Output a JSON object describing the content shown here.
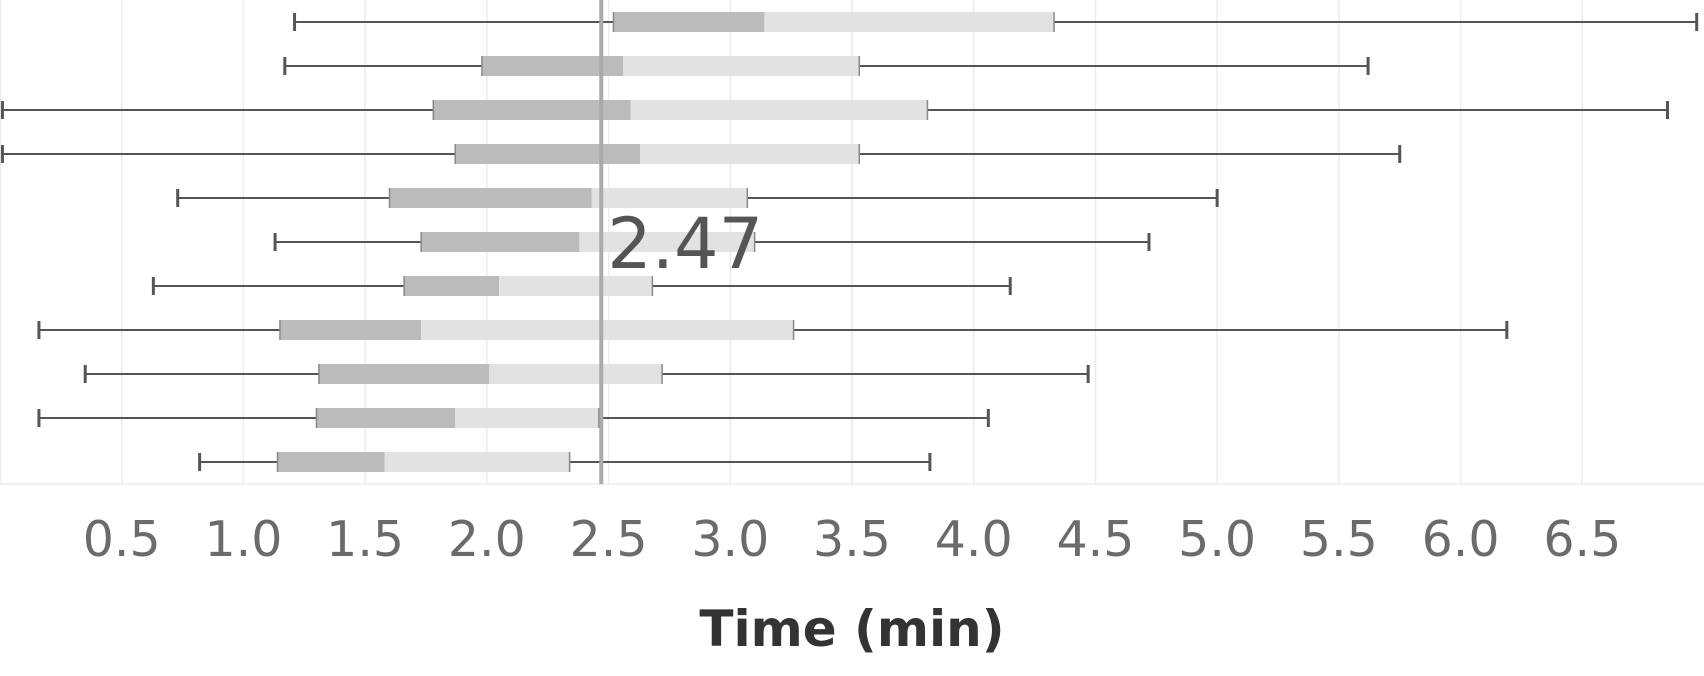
{
  "chart_data": {
    "type": "boxplot",
    "orientation": "horizontal",
    "xlabel": "Time (min)",
    "xlim": [
      0.0,
      7.0
    ],
    "ticks": [
      0.5,
      1.0,
      1.5,
      2.0,
      2.5,
      3.0,
      3.5,
      4.0,
      4.5,
      5.0,
      5.5,
      6.0,
      6.5
    ],
    "tick_labels": [
      "0.5",
      "1.0",
      "1.5",
      "2.0",
      "2.5",
      "3.0",
      "3.5",
      "4.0",
      "4.5",
      "5.0",
      "5.5",
      "6.0",
      "6.5"
    ],
    "grid": true,
    "reference_line": {
      "value": 2.47,
      "label": "2.47"
    },
    "colors": {
      "lower_box": "#bbbbbb",
      "upper_box": "#e2e2e2",
      "whisker": "#555555",
      "gridline": "#ececec",
      "reference": "#aaaaaa"
    },
    "rows": [
      {
        "min": 1.21,
        "q1": 2.52,
        "median": 3.14,
        "q3": 4.33,
        "max": 6.97
      },
      {
        "min": 1.17,
        "q1": 1.98,
        "median": 2.56,
        "q3": 3.53,
        "max": 5.62
      },
      {
        "min": 0.01,
        "q1": 1.78,
        "median": 2.59,
        "q3": 3.81,
        "max": 6.85
      },
      {
        "min": 0.01,
        "q1": 1.87,
        "median": 2.63,
        "q3": 3.53,
        "max": 5.75
      },
      {
        "min": 0.73,
        "q1": 1.6,
        "median": 2.43,
        "q3": 3.07,
        "max": 5.0
      },
      {
        "min": 1.13,
        "q1": 1.73,
        "median": 2.38,
        "q3": 3.1,
        "max": 4.72
      },
      {
        "min": 0.63,
        "q1": 1.66,
        "median": 2.05,
        "q3": 2.68,
        "max": 4.15
      },
      {
        "min": 0.16,
        "q1": 1.15,
        "median": 1.73,
        "q3": 3.26,
        "max": 6.19
      },
      {
        "min": 0.35,
        "q1": 1.31,
        "median": 2.01,
        "q3": 2.72,
        "max": 4.47
      },
      {
        "min": 0.16,
        "q1": 1.3,
        "median": 1.87,
        "q3": 2.46,
        "max": 4.06
      },
      {
        "min": 0.82,
        "q1": 1.14,
        "median": 1.58,
        "q3": 2.34,
        "max": 3.82
      }
    ]
  }
}
